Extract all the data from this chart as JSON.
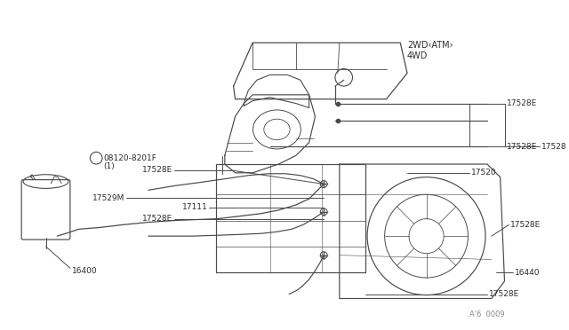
{
  "bg_color": "#ffffff",
  "line_color": "#4a4a4a",
  "text_color": "#2a2a2a",
  "fig_width": 6.4,
  "fig_height": 3.72,
  "dpi": 100,
  "watermark": "A'6  0009",
  "note_top": "2WD〈ATM〉",
  "note_top_plain": "2WD(ATM)",
  "note_top2": "4WD",
  "label_fontsize": 6.5,
  "title_fontsize": 6.5
}
